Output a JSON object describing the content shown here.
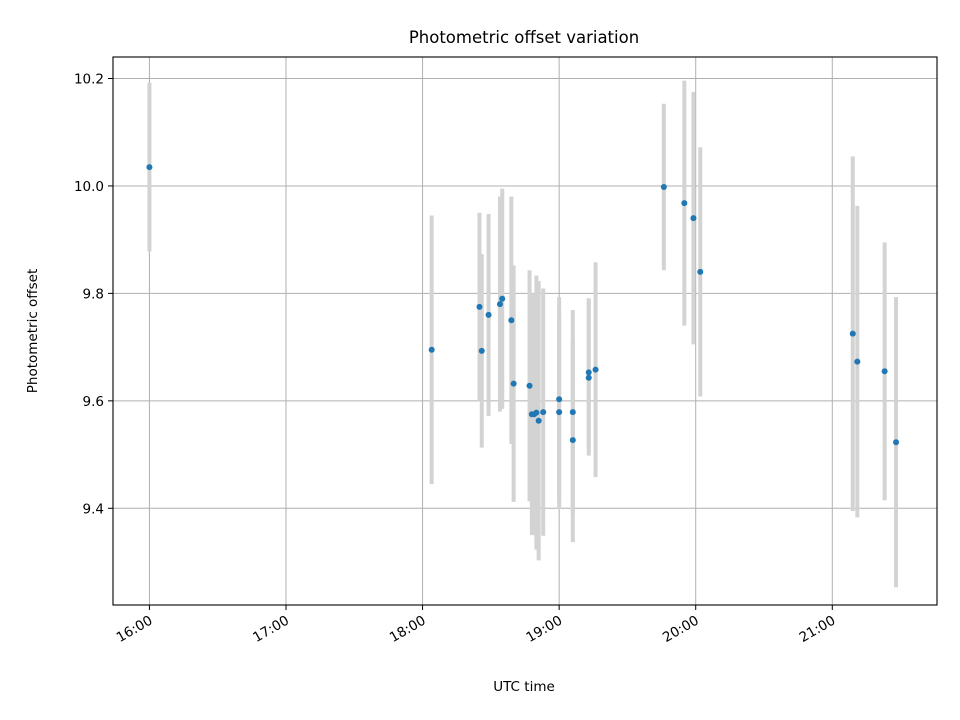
{
  "chart_data": {
    "type": "scatter",
    "title": "Photometric offset variation",
    "xlabel": "UTC time",
    "ylabel": "Photometric offset",
    "xlim": [
      "15:44",
      "21:46"
    ],
    "ylim": [
      9.22,
      10.24
    ],
    "x_ticks": [
      "16:00",
      "17:00",
      "18:00",
      "19:00",
      "20:00",
      "21:00"
    ],
    "y_ticks": [
      "9.4",
      "9.6",
      "9.8",
      "10.0",
      "10.2"
    ],
    "grid": true,
    "point_color": "#1f77b4",
    "errorbar_color": "#d3d3d3",
    "series": [
      {
        "points": [
          {
            "x": "16:00",
            "y": 10.035,
            "yerr": 0.157
          },
          {
            "x": "18:04",
            "y": 9.695,
            "yerr": 0.25
          },
          {
            "x": "18:25",
            "y": 9.775,
            "yerr": 0.175
          },
          {
            "x": "18:26",
            "y": 9.693,
            "yerr": 0.18
          },
          {
            "x": "18:29",
            "y": 9.76,
            "yerr": 0.188
          },
          {
            "x": "18:34",
            "y": 9.78,
            "yerr": 0.2
          },
          {
            "x": "18:35",
            "y": 9.79,
            "yerr": 0.205
          },
          {
            "x": "18:39",
            "y": 9.75,
            "yerr": 0.23
          },
          {
            "x": "18:40",
            "y": 9.632,
            "yerr": 0.22
          },
          {
            "x": "18:47",
            "y": 9.628,
            "yerr": 0.215
          },
          {
            "x": "18:48",
            "y": 9.575,
            "yerr": 0.225
          },
          {
            "x": "18:49",
            "y": 9.575,
            "yerr": 0.225
          },
          {
            "x": "18:50",
            "y": 9.578,
            "yerr": 0.255
          },
          {
            "x": "18:51",
            "y": 9.563,
            "yerr": 0.26
          },
          {
            "x": "18:53",
            "y": 9.579,
            "yerr": 0.23
          },
          {
            "x": "19:00",
            "y": 9.603,
            "yerr": 0.19
          },
          {
            "x": "19:00",
            "y": 9.579,
            "yerr": 0.18
          },
          {
            "x": "19:06",
            "y": 9.527,
            "yerr": 0.19
          },
          {
            "x": "19:06",
            "y": 9.579,
            "yerr": 0.19
          },
          {
            "x": "19:13",
            "y": 9.643,
            "yerr": 0.145
          },
          {
            "x": "19:13",
            "y": 9.653,
            "yerr": 0.138
          },
          {
            "x": "19:16",
            "y": 9.658,
            "yerr": 0.2
          },
          {
            "x": "19:46",
            "y": 9.998,
            "yerr": 0.155
          },
          {
            "x": "19:55",
            "y": 9.968,
            "yerr": 0.228
          },
          {
            "x": "19:59",
            "y": 9.94,
            "yerr": 0.235
          },
          {
            "x": "20:02",
            "y": 9.84,
            "yerr": 0.232
          },
          {
            "x": "21:09",
            "y": 9.725,
            "yerr": 0.33
          },
          {
            "x": "21:11",
            "y": 9.673,
            "yerr": 0.29
          },
          {
            "x": "21:23",
            "y": 9.655,
            "yerr": 0.24
          },
          {
            "x": "21:28",
            "y": 9.523,
            "yerr": 0.27
          }
        ]
      }
    ]
  }
}
